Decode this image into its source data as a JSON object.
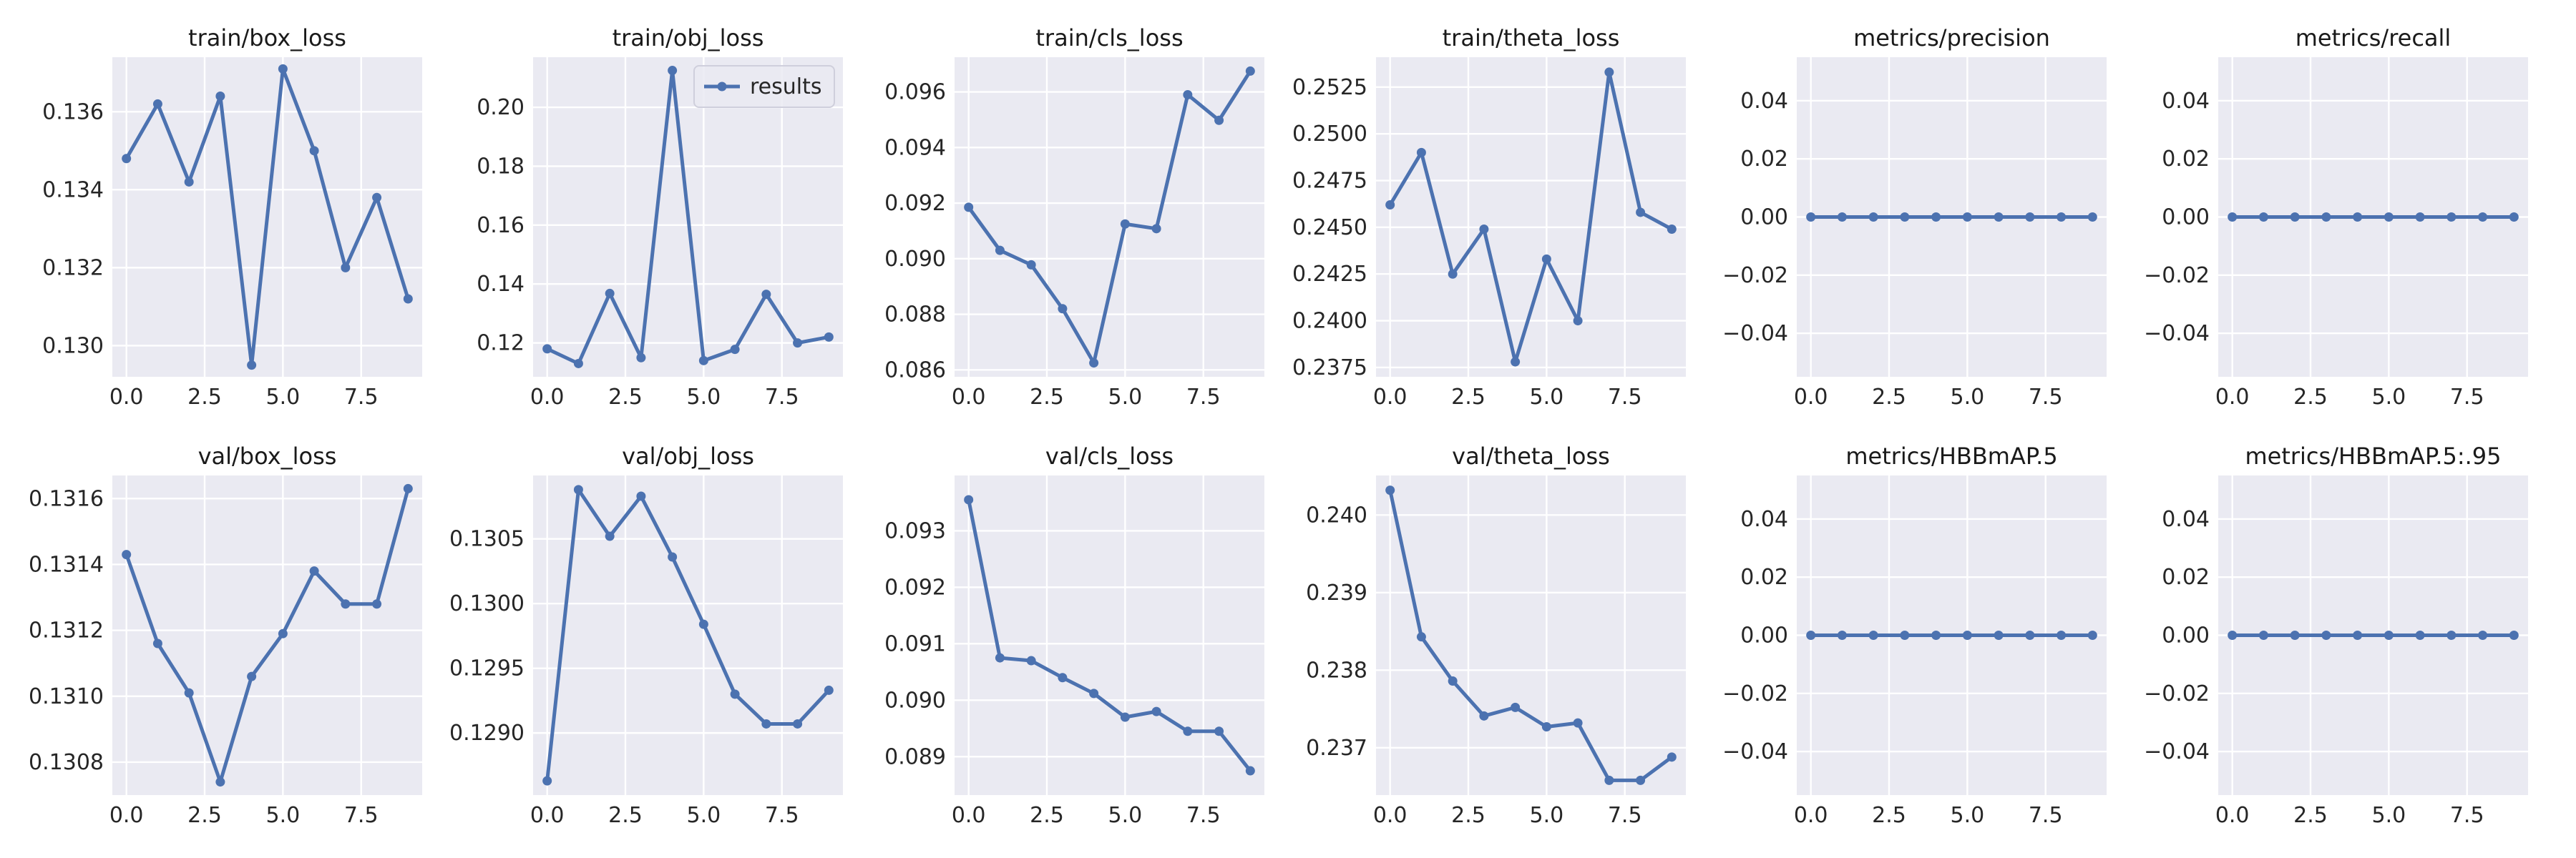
{
  "figure": {
    "line_color": "#4c72b0",
    "panel_background": "#eaeaf2",
    "grid_color": "#ffffff"
  },
  "chart_data": [
    {
      "type": "line",
      "title": "train/box_loss",
      "x": [
        0,
        1,
        2,
        3,
        4,
        5,
        6,
        7,
        8,
        9
      ],
      "series": [
        {
          "name": "results",
          "values": [
            0.1348,
            0.1362,
            0.1342,
            0.1364,
            0.1295,
            0.1371,
            0.135,
            0.132,
            0.1338,
            0.1312
          ]
        }
      ],
      "xlim": [
        -0.45,
        9.45
      ],
      "ylim": [
        0.1292,
        0.1374
      ],
      "x_ticks": [
        0.0,
        2.5,
        5.0,
        7.5
      ],
      "x_tick_labels": [
        "0.0",
        "2.5",
        "5.0",
        "7.5"
      ],
      "y_ticks": [
        0.13,
        0.132,
        0.134,
        0.136
      ],
      "y_tick_labels": [
        "0.130",
        "0.132",
        "0.134",
        "0.136"
      ],
      "grid": true
    },
    {
      "type": "line",
      "title": "train/obj_loss",
      "x": [
        0,
        1,
        2,
        3,
        4,
        5,
        6,
        7,
        8,
        9
      ],
      "series": [
        {
          "name": "results",
          "values": [
            0.118,
            0.113,
            0.1368,
            0.115,
            0.2125,
            0.114,
            0.1178,
            0.1365,
            0.12,
            0.122
          ]
        }
      ],
      "xlim": [
        -0.45,
        9.45
      ],
      "ylim": [
        0.1085,
        0.217
      ],
      "x_ticks": [
        0.0,
        2.5,
        5.0,
        7.5
      ],
      "x_tick_labels": [
        "0.0",
        "2.5",
        "5.0",
        "7.5"
      ],
      "y_ticks": [
        0.12,
        0.14,
        0.16,
        0.18,
        0.2
      ],
      "y_tick_labels": [
        "0.12",
        "0.14",
        "0.16",
        "0.18",
        "0.20"
      ],
      "grid": true,
      "legend": {
        "entries": [
          "results"
        ],
        "placement": "top-right"
      }
    },
    {
      "type": "line",
      "title": "train/cls_loss",
      "x": [
        0,
        1,
        2,
        3,
        4,
        5,
        6,
        7,
        8,
        9
      ],
      "series": [
        {
          "name": "results",
          "values": [
            0.09185,
            0.0903,
            0.08978,
            0.0882,
            0.08625,
            0.09125,
            0.09108,
            0.0959,
            0.09498,
            0.09675
          ]
        }
      ],
      "xlim": [
        -0.45,
        9.45
      ],
      "ylim": [
        0.08575,
        0.09725
      ],
      "x_ticks": [
        0.0,
        2.5,
        5.0,
        7.5
      ],
      "x_tick_labels": [
        "0.0",
        "2.5",
        "5.0",
        "7.5"
      ],
      "y_ticks": [
        0.086,
        0.088,
        0.09,
        0.092,
        0.094,
        0.096
      ],
      "y_tick_labels": [
        "0.086",
        "0.088",
        "0.090",
        "0.092",
        "0.094",
        "0.096"
      ],
      "grid": true
    },
    {
      "type": "line",
      "title": "train/theta_loss",
      "x": [
        0,
        1,
        2,
        3,
        4,
        5,
        6,
        7,
        8,
        9
      ],
      "series": [
        {
          "name": "results",
          "values": [
            0.2462,
            0.249,
            0.2425,
            0.2449,
            0.2378,
            0.2433,
            0.24,
            0.2533,
            0.2458,
            0.2449
          ]
        }
      ],
      "xlim": [
        -0.45,
        9.45
      ],
      "ylim": [
        0.237,
        0.2541
      ],
      "x_ticks": [
        0.0,
        2.5,
        5.0,
        7.5
      ],
      "x_tick_labels": [
        "0.0",
        "2.5",
        "5.0",
        "7.5"
      ],
      "y_ticks": [
        0.2375,
        0.24,
        0.2425,
        0.245,
        0.2475,
        0.25,
        0.2525
      ],
      "y_tick_labels": [
        "0.2375",
        "0.2400",
        "0.2425",
        "0.2450",
        "0.2475",
        "0.2500",
        "0.2525"
      ],
      "grid": true
    },
    {
      "type": "line",
      "title": "metrics/precision",
      "x": [
        0,
        1,
        2,
        3,
        4,
        5,
        6,
        7,
        8,
        9
      ],
      "series": [
        {
          "name": "results",
          "values": [
            0,
            0,
            0,
            0,
            0,
            0,
            0,
            0,
            0,
            0
          ]
        }
      ],
      "xlim": [
        -0.45,
        9.45
      ],
      "ylim": [
        -0.055,
        0.055
      ],
      "x_ticks": [
        0.0,
        2.5,
        5.0,
        7.5
      ],
      "x_tick_labels": [
        "0.0",
        "2.5",
        "5.0",
        "7.5"
      ],
      "y_ticks": [
        -0.04,
        -0.02,
        0.0,
        0.02,
        0.04
      ],
      "y_tick_labels": [
        "−0.04",
        "−0.02",
        "0.00",
        "0.02",
        "0.04"
      ],
      "grid": true
    },
    {
      "type": "line",
      "title": "metrics/recall",
      "x": [
        0,
        1,
        2,
        3,
        4,
        5,
        6,
        7,
        8,
        9
      ],
      "series": [
        {
          "name": "results",
          "values": [
            0,
            0,
            0,
            0,
            0,
            0,
            0,
            0,
            0,
            0
          ]
        }
      ],
      "xlim": [
        -0.45,
        9.45
      ],
      "ylim": [
        -0.055,
        0.055
      ],
      "x_ticks": [
        0.0,
        2.5,
        5.0,
        7.5
      ],
      "x_tick_labels": [
        "0.0",
        "2.5",
        "5.0",
        "7.5"
      ],
      "y_ticks": [
        -0.04,
        -0.02,
        0.0,
        0.02,
        0.04
      ],
      "y_tick_labels": [
        "−0.04",
        "−0.02",
        "0.00",
        "0.02",
        "0.04"
      ],
      "grid": true
    },
    {
      "type": "line",
      "title": "val/box_loss",
      "x": [
        0,
        1,
        2,
        3,
        4,
        5,
        6,
        7,
        8,
        9
      ],
      "series": [
        {
          "name": "results",
          "values": [
            0.13143,
            0.13116,
            0.13101,
            0.13074,
            0.13106,
            0.13119,
            0.13138,
            0.13128,
            0.13128,
            0.13163
          ]
        }
      ],
      "xlim": [
        -0.45,
        9.45
      ],
      "ylim": [
        0.1307,
        0.13167
      ],
      "x_ticks": [
        0.0,
        2.5,
        5.0,
        7.5
      ],
      "x_tick_labels": [
        "0.0",
        "2.5",
        "5.0",
        "7.5"
      ],
      "y_ticks": [
        0.1308,
        0.131,
        0.1312,
        0.1314,
        0.1316
      ],
      "y_tick_labels": [
        "0.1308",
        "0.1310",
        "0.1312",
        "0.1314",
        "0.1316"
      ],
      "grid": true
    },
    {
      "type": "line",
      "title": "val/obj_loss",
      "x": [
        0,
        1,
        2,
        3,
        4,
        5,
        6,
        7,
        8,
        9
      ],
      "series": [
        {
          "name": "results",
          "values": [
            0.12863,
            0.13088,
            0.13052,
            0.13083,
            0.13036,
            0.12984,
            0.1293,
            0.12907,
            0.12907,
            0.12933
          ]
        }
      ],
      "xlim": [
        -0.45,
        9.45
      ],
      "ylim": [
        0.12852,
        0.13099
      ],
      "x_ticks": [
        0.0,
        2.5,
        5.0,
        7.5
      ],
      "x_tick_labels": [
        "0.0",
        "2.5",
        "5.0",
        "7.5"
      ],
      "y_ticks": [
        0.129,
        0.1295,
        0.13,
        0.1305
      ],
      "y_tick_labels": [
        "0.1290",
        "0.1295",
        "0.1300",
        "0.1305"
      ],
      "grid": true
    },
    {
      "type": "line",
      "title": "val/cls_loss",
      "x": [
        0,
        1,
        2,
        3,
        4,
        5,
        6,
        7,
        8,
        9
      ],
      "series": [
        {
          "name": "results",
          "values": [
            0.09355,
            0.09075,
            0.0907,
            0.0904,
            0.09012,
            0.0897,
            0.0898,
            0.08945,
            0.08945,
            0.08875
          ]
        }
      ],
      "xlim": [
        -0.45,
        9.45
      ],
      "ylim": [
        0.08832,
        0.09398
      ],
      "x_ticks": [
        0.0,
        2.5,
        5.0,
        7.5
      ],
      "x_tick_labels": [
        "0.0",
        "2.5",
        "5.0",
        "7.5"
      ],
      "y_ticks": [
        0.089,
        0.09,
        0.091,
        0.092,
        0.093
      ],
      "y_tick_labels": [
        "0.089",
        "0.090",
        "0.091",
        "0.092",
        "0.093"
      ],
      "grid": true
    },
    {
      "type": "line",
      "title": "val/theta_loss",
      "x": [
        0,
        1,
        2,
        3,
        4,
        5,
        6,
        7,
        8,
        9
      ],
      "series": [
        {
          "name": "results",
          "values": [
            0.24032,
            0.23843,
            0.23786,
            0.23741,
            0.23752,
            0.23727,
            0.23732,
            0.23658,
            0.23658,
            0.23688
          ]
        }
      ],
      "xlim": [
        -0.45,
        9.45
      ],
      "ylim": [
        0.23639,
        0.24051
      ],
      "x_ticks": [
        0.0,
        2.5,
        5.0,
        7.5
      ],
      "x_tick_labels": [
        "0.0",
        "2.5",
        "5.0",
        "7.5"
      ],
      "y_ticks": [
        0.237,
        0.238,
        0.239,
        0.24
      ],
      "y_tick_labels": [
        "0.237",
        "0.238",
        "0.239",
        "0.240"
      ],
      "grid": true
    },
    {
      "type": "line",
      "title": "metrics/HBBmAP.5",
      "x": [
        0,
        1,
        2,
        3,
        4,
        5,
        6,
        7,
        8,
        9
      ],
      "series": [
        {
          "name": "results",
          "values": [
            0,
            0,
            0,
            0,
            0,
            0,
            0,
            0,
            0,
            0
          ]
        }
      ],
      "xlim": [
        -0.45,
        9.45
      ],
      "ylim": [
        -0.055,
        0.055
      ],
      "x_ticks": [
        0.0,
        2.5,
        5.0,
        7.5
      ],
      "x_tick_labels": [
        "0.0",
        "2.5",
        "5.0",
        "7.5"
      ],
      "y_ticks": [
        -0.04,
        -0.02,
        0.0,
        0.02,
        0.04
      ],
      "y_tick_labels": [
        "−0.04",
        "−0.02",
        "0.00",
        "0.02",
        "0.04"
      ],
      "grid": true
    },
    {
      "type": "line",
      "title": "metrics/HBBmAP.5:.95",
      "x": [
        0,
        1,
        2,
        3,
        4,
        5,
        6,
        7,
        8,
        9
      ],
      "series": [
        {
          "name": "results",
          "values": [
            0,
            0,
            0,
            0,
            0,
            0,
            0,
            0,
            0,
            0
          ]
        }
      ],
      "xlim": [
        -0.45,
        9.45
      ],
      "ylim": [
        -0.055,
        0.055
      ],
      "x_ticks": [
        0.0,
        2.5,
        5.0,
        7.5
      ],
      "x_tick_labels": [
        "0.0",
        "2.5",
        "5.0",
        "7.5"
      ],
      "y_ticks": [
        -0.04,
        -0.02,
        0.0,
        0.02,
        0.04
      ],
      "y_tick_labels": [
        "−0.04",
        "−0.02",
        "0.00",
        "0.02",
        "0.04"
      ],
      "grid": true
    }
  ]
}
